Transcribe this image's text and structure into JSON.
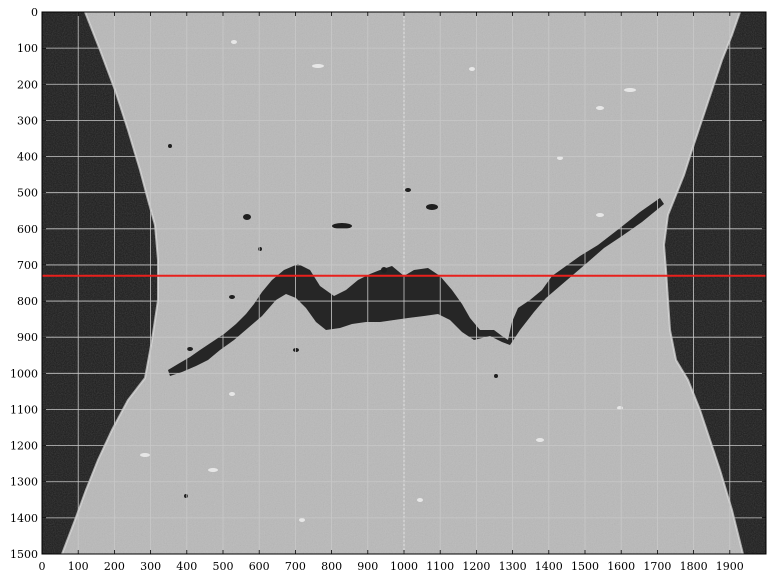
{
  "chart_data": {
    "type": "image",
    "title": "",
    "xlabel": "",
    "ylabel": "",
    "xlim": [
      0,
      2000
    ],
    "ylim": [
      1500,
      0
    ],
    "grid": true,
    "x_ticks": [
      0,
      100,
      200,
      300,
      400,
      500,
      600,
      700,
      800,
      900,
      1000,
      1100,
      1200,
      1300,
      1400,
      1500,
      1600,
      1700,
      1800,
      1900
    ],
    "y_ticks": [
      0,
      100,
      200,
      300,
      400,
      500,
      600,
      700,
      800,
      900,
      1000,
      1100,
      1200,
      1300,
      1400,
      1500
    ],
    "annotations": [
      {
        "type": "horizontal-line",
        "y": 730,
        "color": "#e8201c"
      }
    ],
    "colors": {
      "specimen": "#b9b9b9",
      "background": "#1b1b1b",
      "crack": "#262626",
      "grid": "#c8c8c8",
      "marker_line": "#e8201c"
    }
  }
}
